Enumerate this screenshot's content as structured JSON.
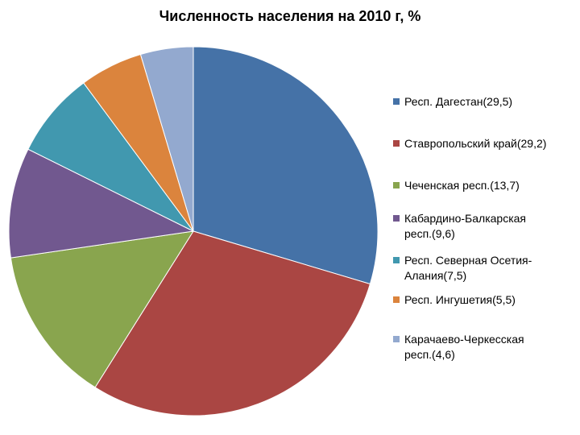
{
  "chart_data": {
    "type": "pie",
    "title": "Численность населения на 2010 г, %",
    "legend_position": "right",
    "categories": [
      "Респ. Дагестан(29,5)",
      "Ставропольский край(29,2)",
      "Чеченская респ.(13,7)",
      "Кабардино-Балкарская респ.(9,6)",
      "Респ. Северная Осетия-Алания(7,5)",
      "Респ. Ингушетия(5,5)",
      "Карачаево-Черкесская респ.(4,6)"
    ],
    "values": [
      29.5,
      29.2,
      13.7,
      9.6,
      7.5,
      5.5,
      4.6
    ],
    "colors": [
      "#4572A7",
      "#AA4643",
      "#89A54E",
      "#71588F",
      "#4198AF",
      "#DB843D",
      "#93A9CF"
    ]
  }
}
